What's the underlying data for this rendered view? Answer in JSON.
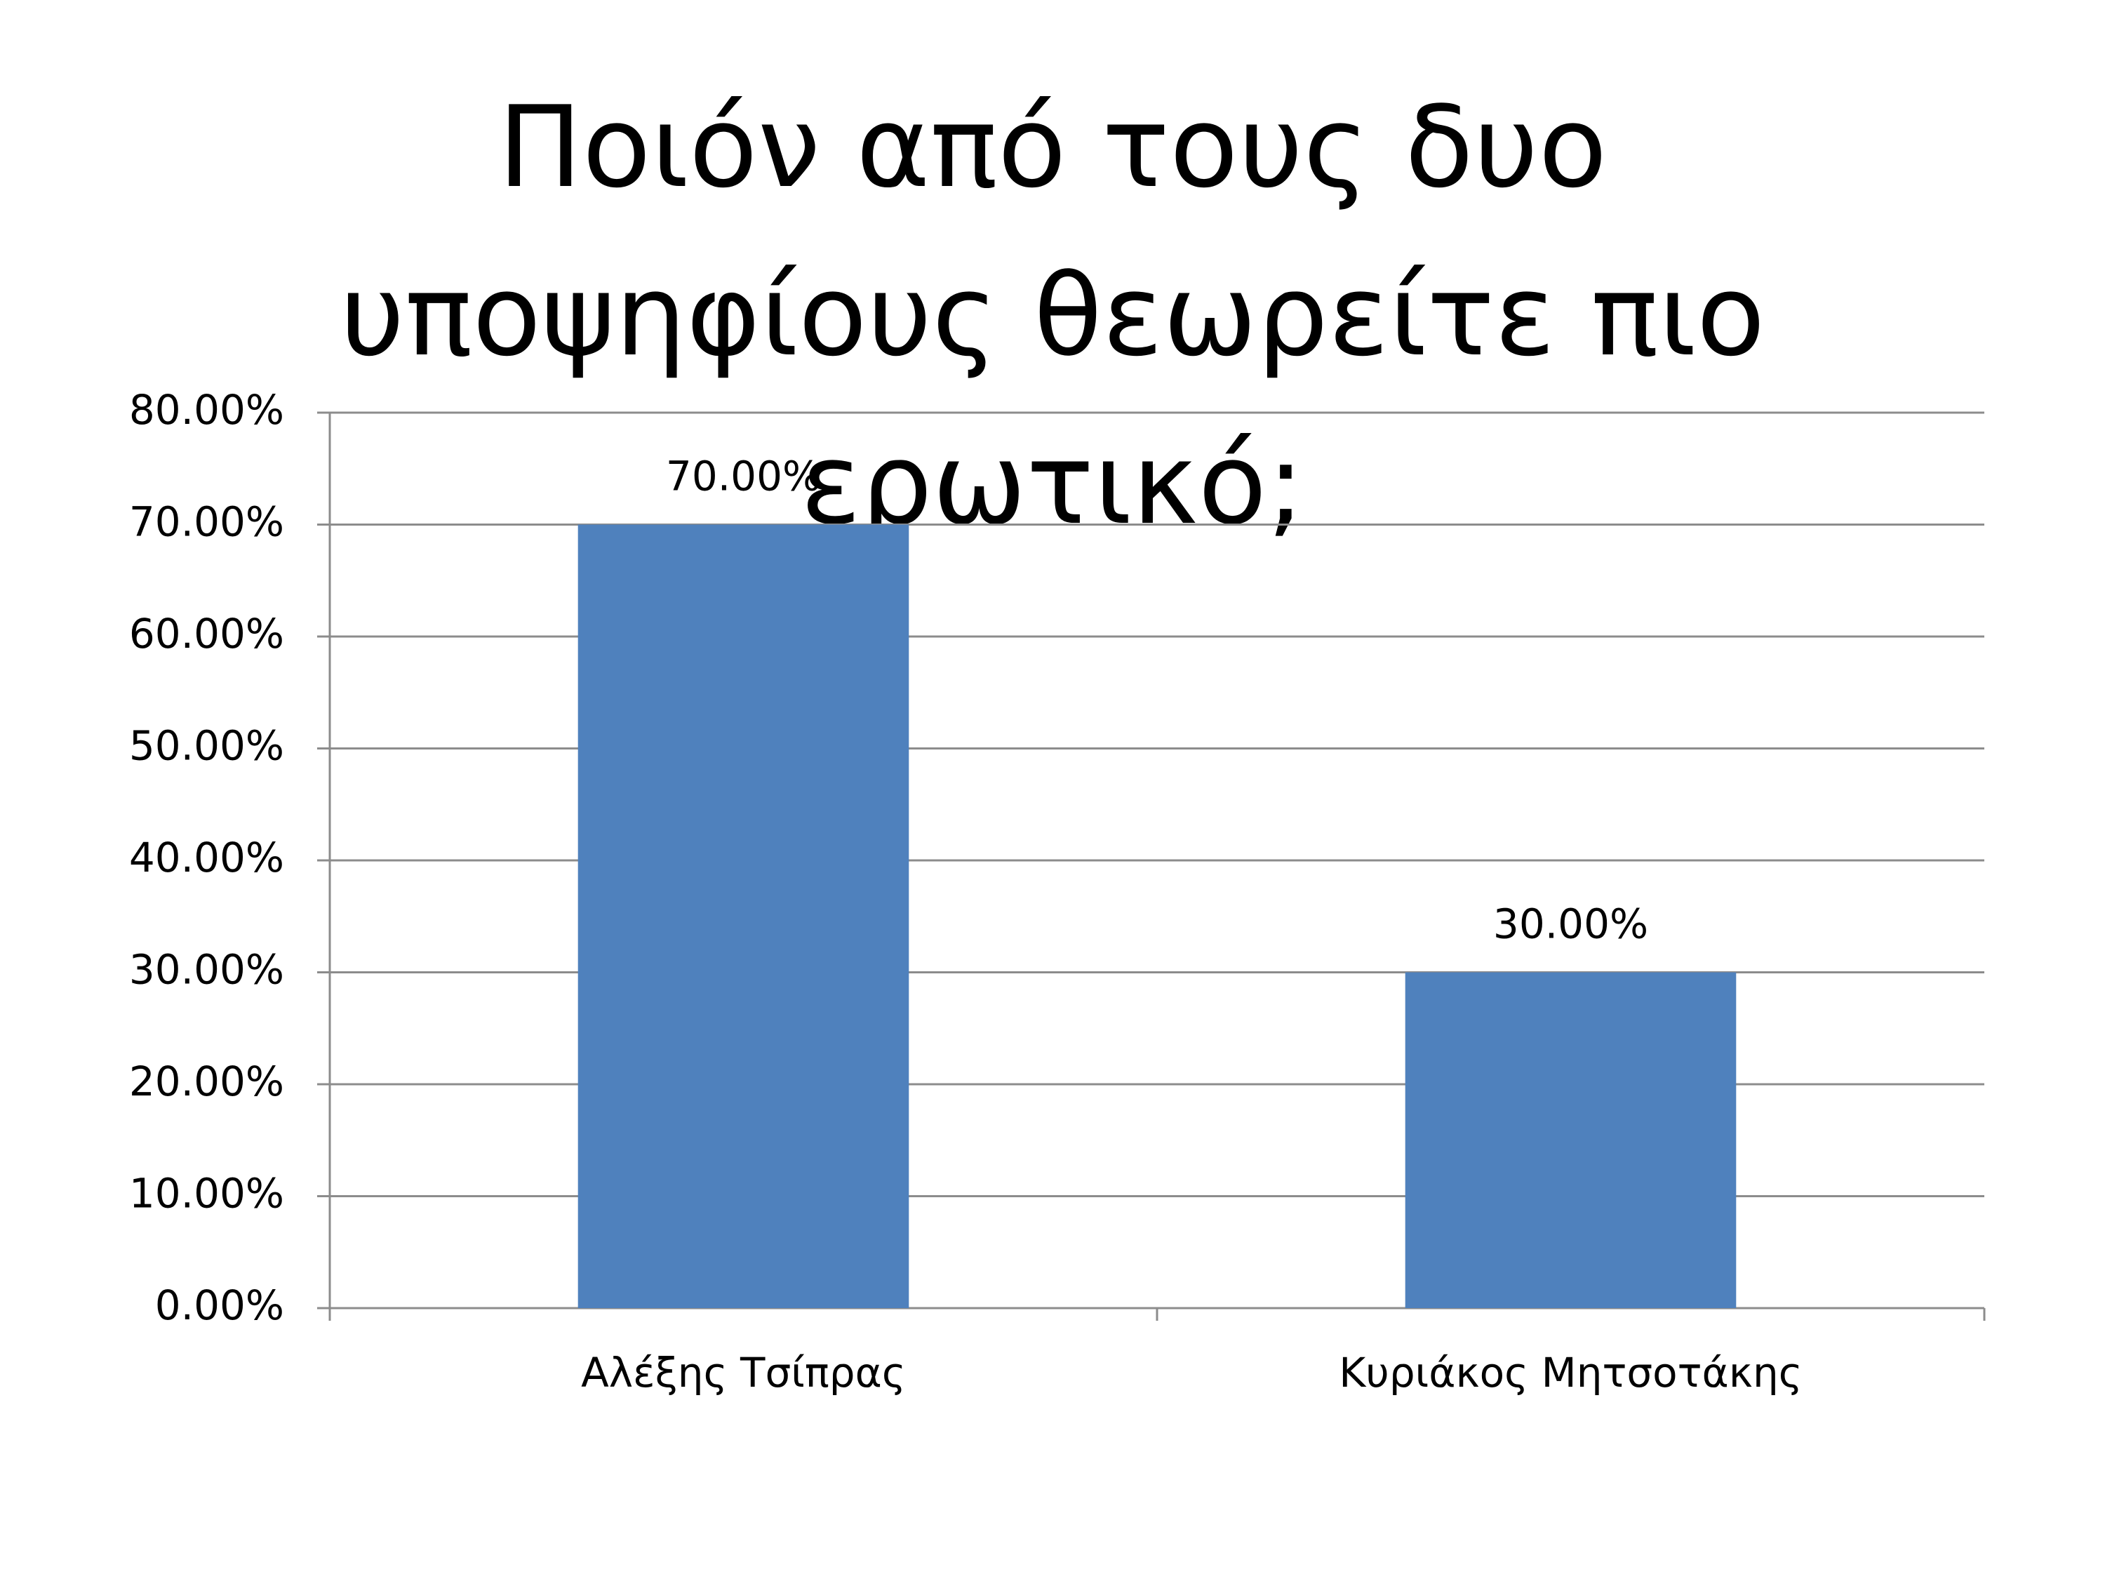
{
  "chart_data": {
    "type": "bar",
    "title": "Ποιόν από τους δυο υποψηφίους θεωρείτε πιο ερωτικό;",
    "categories": [
      "Αλέξης Τσίπρας",
      "Κυριάκος Μητσοτάκης"
    ],
    "values": [
      70,
      30
    ],
    "value_labels": [
      "70.00%",
      "30.00%"
    ],
    "color": "#4f81bd",
    "ylim": [
      0,
      80
    ],
    "yticks": [
      {
        "value": 0,
        "label": "0.00%"
      },
      {
        "value": 10,
        "label": "10.00%"
      },
      {
        "value": 20,
        "label": "20.00%"
      },
      {
        "value": 30,
        "label": "30.00%"
      },
      {
        "value": 40,
        "label": "40.00%"
      },
      {
        "value": 50,
        "label": "50.00%"
      },
      {
        "value": 60,
        "label": "60.00%"
      },
      {
        "value": 70,
        "label": "70.00%"
      },
      {
        "value": 80,
        "label": "80.00%"
      }
    ],
    "grid": true
  }
}
